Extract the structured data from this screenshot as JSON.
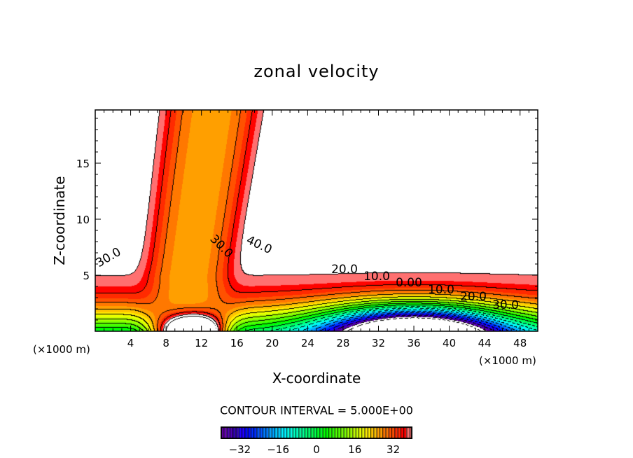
{
  "chart_data": {
    "type": "heatmap",
    "subtype": "filled-contour",
    "title": "zonal velocity",
    "xlabel": "X-coordinate",
    "ylabel": "Z-coordinate",
    "x_unit_left": "(×1000 m)",
    "x_unit_right": "(×1000 m)",
    "xlim": [
      0,
      50
    ],
    "ylim": [
      0,
      19.75
    ],
    "x_ticks": [
      "4",
      "8",
      "12",
      "16",
      "20",
      "24",
      "28",
      "32",
      "36",
      "40",
      "44",
      "48"
    ],
    "y_ticks": [
      "5",
      "10",
      "15"
    ],
    "contour_interval_text": "CONTOUR INTERVAL = 5.000E+00",
    "contour_interval": 5,
    "value_range": [
      -40,
      40
    ],
    "colorbar_ticks": [
      "−32",
      "−16",
      "0",
      "16",
      "32"
    ],
    "contour_labels": [
      "30.0",
      "30.0",
      "40.0",
      "20.0",
      "10.0",
      "0.00",
      "10.0",
      "20.0",
      "30.0"
    ]
  }
}
